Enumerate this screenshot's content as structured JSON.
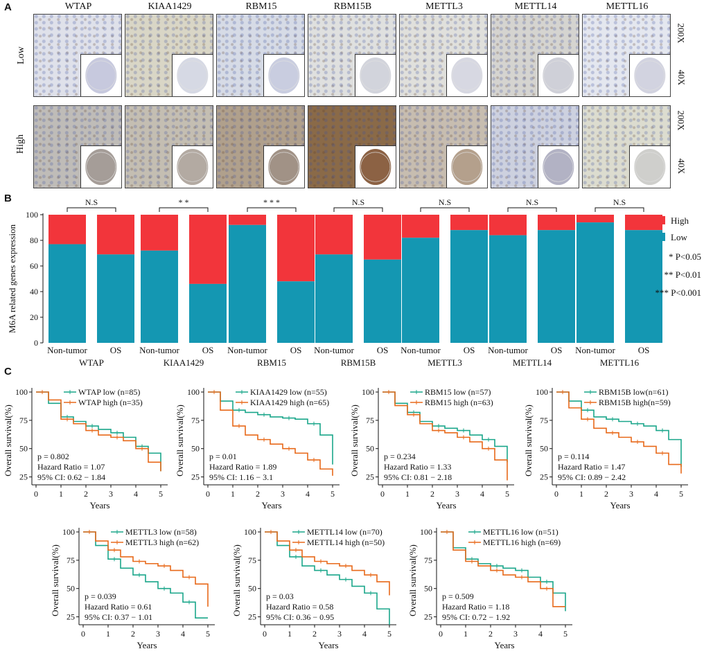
{
  "panels": {
    "a": "A",
    "b": "B",
    "c": "C"
  },
  "ihc": {
    "genes": [
      "WTAP",
      "KIAA1429",
      "RBM15",
      "RBM15B",
      "METTL3",
      "METTL14",
      "METTL16"
    ],
    "rows": [
      "Low",
      "High"
    ],
    "magnifications": [
      "200X",
      "40X"
    ]
  },
  "chart_data": [
    {
      "type": "bar",
      "stacked": true,
      "ylabel": "M6A related genes expression",
      "ylim": [
        0,
        100
      ],
      "yticks": [
        "0",
        "20",
        "40",
        "60",
        "80",
        "100"
      ],
      "genes": [
        "WTAP",
        "KIAA1429",
        "RBM15",
        "RBM15B",
        "METTL3",
        "METTL14",
        "METTL16"
      ],
      "groups": [
        "Non-tumor",
        "OS"
      ],
      "low_values": [
        [
          77,
          69
        ],
        [
          72,
          46
        ],
        [
          92,
          48
        ],
        [
          69,
          65
        ],
        [
          82,
          88
        ],
        [
          84,
          88
        ],
        [
          94,
          88
        ]
      ],
      "significance": [
        "N.S",
        "* *",
        "* * *",
        "N.S",
        "N.S",
        "N.S",
        "N.S"
      ],
      "legend": [
        {
          "name": "High",
          "color": "#f2353b"
        },
        {
          "name": "Low",
          "color": "#1497b2"
        }
      ],
      "pvalue_notes": [
        "* P<0.05",
        "** P<0.01",
        "*** P<0.001"
      ]
    },
    {
      "type": "line",
      "subtype": "kaplan-meier",
      "xlabel": "Years",
      "ylabel": "Overall survival(%)",
      "xticks": [
        "0",
        "1",
        "2",
        "3",
        "4",
        "5"
      ],
      "yticks": [
        "25",
        "50",
        "75",
        "100"
      ],
      "xlim": [
        0,
        5
      ],
      "ylim": [
        18,
        100
      ],
      "colors": {
        "low": "#1aa68a",
        "high": "#e8691a"
      },
      "plots": [
        {
          "low_label": "WTAP low (n=85)",
          "high_label": "WTAP high (n=35)",
          "stats": [
            "p = 0.802",
            "Hazard Ratio = 1.07",
            "95% CI: 0.62 − 1.84"
          ],
          "low": [
            [
              0,
              100
            ],
            [
              0.5,
              90
            ],
            [
              1,
              78
            ],
            [
              1.5,
              74
            ],
            [
              2,
              70
            ],
            [
              2.5,
              67
            ],
            [
              3,
              64
            ],
            [
              3.5,
              60
            ],
            [
              4,
              52
            ],
            [
              4.5,
              46
            ],
            [
              5,
              30
            ]
          ],
          "high": [
            [
              0,
              100
            ],
            [
              0.5,
              93
            ],
            [
              1,
              76
            ],
            [
              1.5,
              72
            ],
            [
              2,
              66
            ],
            [
              2.5,
              62
            ],
            [
              3,
              60
            ],
            [
              3.5,
              57
            ],
            [
              4,
              50
            ],
            [
              4.5,
              38
            ],
            [
              5,
              30
            ]
          ]
        },
        {
          "low_label": "KIAA1429 low (n=55)",
          "high_label": "KIAA1429 high (n=65)",
          "stats": [
            "p = 0.01",
            "Hazard Ratio = 1.89",
            "95% CI: 1.16 − 3.1"
          ],
          "low": [
            [
              0,
              100
            ],
            [
              0.5,
              92
            ],
            [
              1,
              84
            ],
            [
              1.5,
              82
            ],
            [
              2,
              80
            ],
            [
              2.5,
              78
            ],
            [
              3,
              77
            ],
            [
              3.5,
              76
            ],
            [
              4,
              72
            ],
            [
              4.5,
              62
            ],
            [
              5,
              36
            ]
          ],
          "high": [
            [
              0,
              100
            ],
            [
              0.5,
              84
            ],
            [
              1,
              70
            ],
            [
              1.5,
              62
            ],
            [
              2,
              58
            ],
            [
              2.5,
              54
            ],
            [
              3,
              50
            ],
            [
              3.5,
              46
            ],
            [
              4,
              40
            ],
            [
              4.5,
              32
            ],
            [
              5,
              26
            ]
          ]
        },
        {
          "low_label": "RBM15 low (n=57)",
          "high_label": "RBM15 high (n=63)",
          "stats": [
            "p = 0.234",
            "Hazard Ratio = 1.33",
            "95% CI: 0.81 − 2.18"
          ],
          "low": [
            [
              0,
              100
            ],
            [
              0.5,
              90
            ],
            [
              1,
              82
            ],
            [
              1.5,
              74
            ],
            [
              2,
              70
            ],
            [
              2.5,
              68
            ],
            [
              3,
              66
            ],
            [
              3.5,
              62
            ],
            [
              4,
              58
            ],
            [
              4.5,
              52
            ],
            [
              5,
              38
            ]
          ],
          "high": [
            [
              0,
              100
            ],
            [
              0.5,
              88
            ],
            [
              1,
              80
            ],
            [
              1.5,
              72
            ],
            [
              2,
              66
            ],
            [
              2.5,
              64
            ],
            [
              3,
              60
            ],
            [
              3.5,
              56
            ],
            [
              4,
              50
            ],
            [
              4.5,
              40
            ],
            [
              5,
              22
            ]
          ]
        },
        {
          "low_label": "RBM15B low(n=61)",
          "high_label": "RBM15B high(n=59)",
          "stats": [
            "p = 0.114",
            "Hazard Ratio = 1.47",
            "95% CI: 0.89 − 2.42"
          ],
          "low": [
            [
              0,
              100
            ],
            [
              0.5,
              92
            ],
            [
              1,
              84
            ],
            [
              1.5,
              78
            ],
            [
              2,
              76
            ],
            [
              2.5,
              74
            ],
            [
              3,
              72
            ],
            [
              3.5,
              70
            ],
            [
              4,
              66
            ],
            [
              4.5,
              58
            ],
            [
              5,
              34
            ]
          ],
          "high": [
            [
              0,
              100
            ],
            [
              0.5,
              86
            ],
            [
              1,
              76
            ],
            [
              1.5,
              68
            ],
            [
              2,
              64
            ],
            [
              2.5,
              60
            ],
            [
              3,
              56
            ],
            [
              3.5,
              52
            ],
            [
              4,
              46
            ],
            [
              4.5,
              36
            ],
            [
              5,
              28
            ]
          ]
        },
        {
          "low_label": "METTL3 low (n=58)",
          "high_label": "METTL3 high (n=62)",
          "stats": [
            "p = 0.039",
            "Hazard Ratio = 0.61",
            "95% CI: 0.37 − 1.01"
          ],
          "low": [
            [
              0,
              100
            ],
            [
              0.5,
              88
            ],
            [
              1,
              76
            ],
            [
              1.5,
              68
            ],
            [
              2,
              62
            ],
            [
              2.5,
              56
            ],
            [
              3,
              50
            ],
            [
              3.5,
              46
            ],
            [
              4,
              38
            ],
            [
              4.5,
              24
            ],
            [
              5,
              24
            ]
          ],
          "high": [
            [
              0,
              100
            ],
            [
              0.5,
              92
            ],
            [
              1,
              84
            ],
            [
              1.5,
              78
            ],
            [
              2,
              74
            ],
            [
              2.5,
              72
            ],
            [
              3,
              70
            ],
            [
              3.5,
              66
            ],
            [
              4,
              60
            ],
            [
              4.5,
              54
            ],
            [
              5,
              34
            ]
          ]
        },
        {
          "low_label": "METTL14 low (n=70)",
          "high_label": "METTL14 high (n=50)",
          "stats": [
            "p = 0.03",
            "Hazard Ratio = 0.58",
            "95% CI: 0.36 − 0.95"
          ],
          "low": [
            [
              0,
              100
            ],
            [
              0.5,
              88
            ],
            [
              1,
              78
            ],
            [
              1.5,
              70
            ],
            [
              2,
              66
            ],
            [
              2.5,
              62
            ],
            [
              3,
              58
            ],
            [
              3.5,
              52
            ],
            [
              4,
              46
            ],
            [
              4.5,
              32
            ],
            [
              5,
              18
            ]
          ],
          "high": [
            [
              0,
              100
            ],
            [
              0.5,
              92
            ],
            [
              1,
              84
            ],
            [
              1.5,
              78
            ],
            [
              2,
              74
            ],
            [
              2.5,
              72
            ],
            [
              3,
              70
            ],
            [
              3.5,
              66
            ],
            [
              4,
              62
            ],
            [
              4.5,
              56
            ],
            [
              5,
              44
            ]
          ]
        },
        {
          "low_label": "METTL16 low (n=51)",
          "high_label": "METTL16 high (n=69)",
          "stats": [
            "p = 0.509",
            "Hazard Ratio = 1.18",
            "95% CI: 0.72 − 1.92"
          ],
          "low": [
            [
              0,
              100
            ],
            [
              0.5,
              86
            ],
            [
              1,
              76
            ],
            [
              1.5,
              72
            ],
            [
              2,
              70
            ],
            [
              2.5,
              68
            ],
            [
              3,
              66
            ],
            [
              3.5,
              60
            ],
            [
              4,
              56
            ],
            [
              4.5,
              46
            ],
            [
              5,
              30
            ]
          ],
          "high": [
            [
              0,
              100
            ],
            [
              0.5,
              84
            ],
            [
              1,
              74
            ],
            [
              1.5,
              70
            ],
            [
              2,
              66
            ],
            [
              2.5,
              62
            ],
            [
              3,
              60
            ],
            [
              3.5,
              56
            ],
            [
              4,
              50
            ],
            [
              4.5,
              34
            ],
            [
              5,
              34
            ]
          ]
        }
      ]
    }
  ]
}
